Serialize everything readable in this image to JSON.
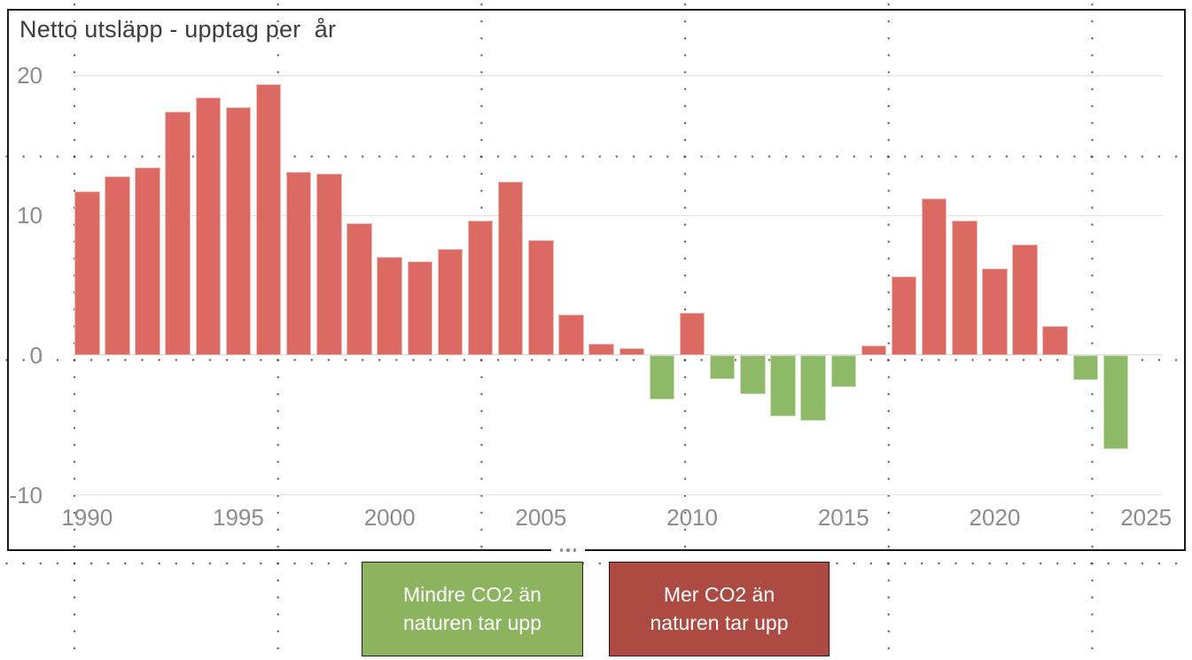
{
  "title": "Netto utsläpp - upptag per  år",
  "chart_data": {
    "type": "bar",
    "title": "Netto utsläpp - upptag per  år",
    "x": [
      1990,
      1991,
      1992,
      1993,
      1994,
      1995,
      1996,
      1997,
      1998,
      1999,
      2000,
      2001,
      2002,
      2003,
      2004,
      2005,
      2006,
      2007,
      2008,
      2009,
      2010,
      2011,
      2012,
      2013,
      2014,
      2015,
      2016,
      2017,
      2018,
      2019,
      2020,
      2021,
      2022,
      2023,
      2024
    ],
    "values": [
      11.7,
      12.8,
      13.4,
      17.4,
      18.4,
      17.7,
      19.4,
      13.1,
      13.0,
      9.4,
      7.0,
      6.7,
      7.6,
      9.6,
      12.4,
      8.2,
      2.9,
      0.8,
      0.5,
      -3.2,
      3.0,
      -1.7,
      -2.8,
      -4.4,
      -4.7,
      -2.3,
      0.7,
      5.6,
      11.2,
      9.6,
      6.2,
      7.9,
      2.1,
      -1.8,
      -6.7
    ],
    "yticks": [
      20,
      10,
      0,
      -10
    ],
    "xticks": [
      1990,
      1995,
      2000,
      2005,
      2010,
      2015,
      2020,
      2025
    ],
    "ylim": [
      -10,
      20
    ],
    "xlabel": "",
    "ylabel": "",
    "grid": "horizontal",
    "positive_color": "#db6a63",
    "negative_color": "#8eb966"
  },
  "legend": {
    "negative_label": "Mindre CO2 än naturen tar upp",
    "positive_label": "Mer CO2 än naturen tar upp",
    "negative_bg": "#8cb45f",
    "positive_bg": "#ad4a41",
    "text_color": "#ffffff"
  },
  "handle": {
    "name": "more-options"
  },
  "colors": {
    "frame_border": "#181818",
    "title_text": "#3d3d3d",
    "axis_text": "#8c8c8c",
    "gridline": "#e3e3e3",
    "canvas_dots": "#2d2d2d"
  }
}
